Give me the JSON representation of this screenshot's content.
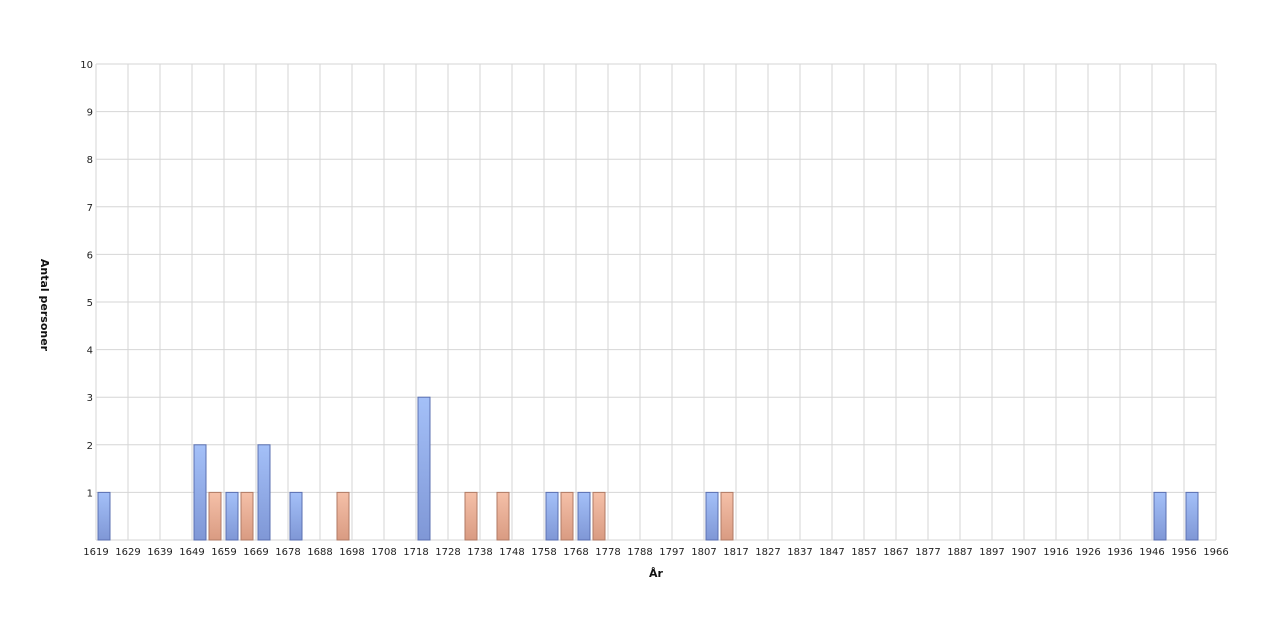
{
  "chart_data": {
    "type": "bar",
    "xlabel": "År",
    "ylabel": "Antal personer",
    "ylim": [
      0,
      10
    ],
    "y_ticks": [
      1,
      2,
      3,
      4,
      5,
      6,
      7,
      8,
      9,
      10
    ],
    "x_tick_labels": [
      "1619",
      "1629",
      "1639",
      "1649",
      "1659",
      "1669",
      "1678",
      "1688",
      "1698",
      "1708",
      "1718",
      "1728",
      "1738",
      "1748",
      "1758",
      "1768",
      "1778",
      "1788",
      "1797",
      "1807",
      "1817",
      "1827",
      "1837",
      "1847",
      "1857",
      "1867",
      "1877",
      "1887",
      "1897",
      "1907",
      "1916",
      "1926",
      "1936",
      "1946",
      "1956",
      "1966"
    ],
    "grid": true,
    "colors": {
      "blue_top": "#a4c0f8",
      "blue_bottom": "#7f97d6",
      "blue_stroke": "#5a6fb0",
      "orange_top": "#f5c0a8",
      "orange_bottom": "#d99b82",
      "orange_stroke": "#b07a64",
      "grid": "#d6d6d6"
    },
    "series": [
      {
        "color": "blue",
        "points": [
          {
            "x": 1619,
            "y": 1
          },
          {
            "x": 1649,
            "y": 2
          },
          {
            "x": 1659,
            "y": 1
          },
          {
            "x": 1669,
            "y": 2
          },
          {
            "x": 1678,
            "y": 1
          },
          {
            "x": 1718,
            "y": 3
          },
          {
            "x": 1758,
            "y": 1
          },
          {
            "x": 1768,
            "y": 1
          },
          {
            "x": 1807,
            "y": 1
          },
          {
            "x": 1946,
            "y": 1
          },
          {
            "x": 1956,
            "y": 1
          }
        ]
      },
      {
        "color": "orange",
        "points": [
          {
            "x": 1649,
            "y": 1
          },
          {
            "x": 1659,
            "y": 1
          },
          {
            "x": 1688,
            "y": 1
          },
          {
            "x": 1728,
            "y": 1
          },
          {
            "x": 1738,
            "y": 1
          },
          {
            "x": 1758,
            "y": 1
          },
          {
            "x": 1768,
            "y": 1
          },
          {
            "x": 1807,
            "y": 1
          }
        ]
      }
    ]
  }
}
